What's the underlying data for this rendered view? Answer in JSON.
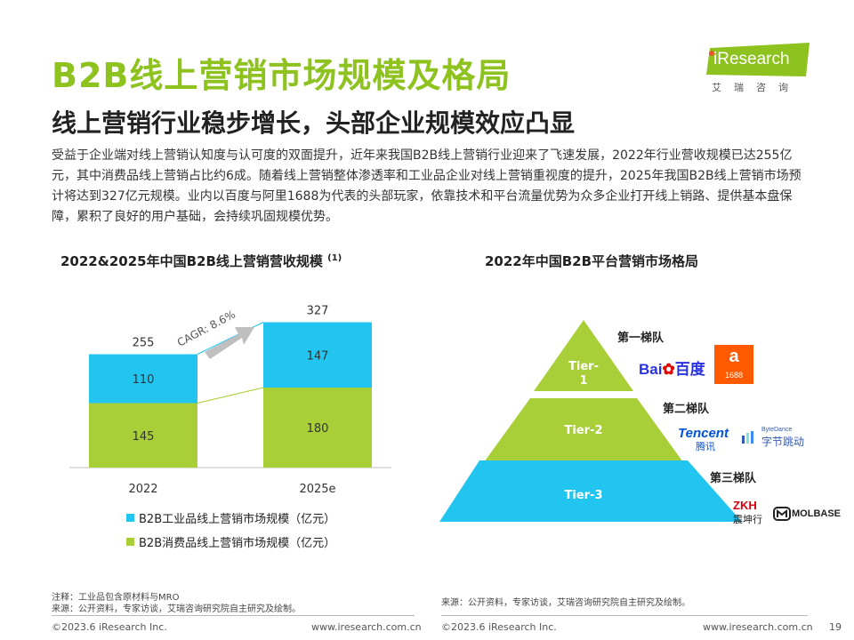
{
  "header": {
    "title": "B2B线上营销市场规模及格局",
    "subtitle": "线上营销行业稳步增长，头部企业规模效应凸显",
    "intro": "受益于企业端对线上营销认知度与认可度的双面提升，近年来我国B2B线上营销行业迎来了飞速发展，2022年行业营收规模已达255亿元，其中消费品线上营销占比约6成。随着线上营销整体渗透率和工业品企业对线上营销重视度的提升，2025年我国B2B线上营销市场预计将达到327亿元规模。业内以百度与阿里1688为代表的头部玩家，依靠技术和平台流量优势为众多企业打开线上销路、提供基本盘保障，累积了良好的用户基础，会持续巩固规模优势。"
  },
  "logo": {
    "text": "iResearch",
    "sub": "艾瑞咨询"
  },
  "left_chart": {
    "title": "2022&2025年中国B2B线上营销营收规模",
    "title_note": "(1)",
    "cagr_label": "CAGR: 8.6%",
    "legend": [
      {
        "label": "B2B工业品线上营销市场规模（亿元）",
        "color": "#21c5ef"
      },
      {
        "label": "B2B消费品线上营销市场规模（亿元）",
        "color": "#a9cf38"
      }
    ]
  },
  "chart_data": {
    "type": "bar",
    "stacked": true,
    "categories": [
      "2022",
      "2025e"
    ],
    "series": [
      {
        "name": "B2B消费品线上营销市场规模（亿元）",
        "values": [
          145,
          180
        ],
        "color": "#a9cf38"
      },
      {
        "name": "B2B工业品线上营销市场规模（亿元）",
        "values": [
          110,
          147
        ],
        "color": "#21c5ef"
      }
    ],
    "totals": [
      255,
      327
    ],
    "title": "2022&2025年中国B2B线上营销营收规模",
    "annotation": "CAGR: 8.6%",
    "ylim": [
      0,
      360
    ],
    "grid": false,
    "legend_position": "bottom-left"
  },
  "right_chart": {
    "title": "2022年中国B2B平台营销市场格局",
    "tiers": [
      {
        "name_line1": "Tier-",
        "name_line2": "1",
        "group": "第一梯队",
        "color": "#a9cf38"
      },
      {
        "name_line1": "Tier-2",
        "name_line2": "",
        "group": "第二梯队",
        "color": "#a9cf38"
      },
      {
        "name_line1": "Tier-3",
        "name_line2": "",
        "group": "第三梯队",
        "color": "#21c5ef"
      }
    ],
    "brands": {
      "baidu": "百度",
      "baidu_en": "Bai",
      "alibaba_1688": "1688",
      "tencent": "Tencent",
      "tencent_cn": "腾讯",
      "bytedance_en": "ByteDance",
      "bytedance_cn": "字节跳动",
      "zkh": "ZKH",
      "zkh_cn": "震坤行",
      "molbase": "MOLBASE"
    }
  },
  "footnotes": {
    "left_note": "注释：工业品包含原材料与MRO",
    "left_source": "来源：公开资料，专家访谈，艾瑞咨询研究院自主研究及绘制。",
    "right_source": "来源：公开资料，专家访谈，艾瑞咨询研究院自主研究及绘制。"
  },
  "footer": {
    "copyright_left": "©2023.6 iResearch Inc.",
    "url_left": "www.iresearch.com.cn",
    "copyright_right": "©2023.6 iResearch Inc.",
    "url_right": "www.iresearch.com.cn",
    "page": "19"
  }
}
